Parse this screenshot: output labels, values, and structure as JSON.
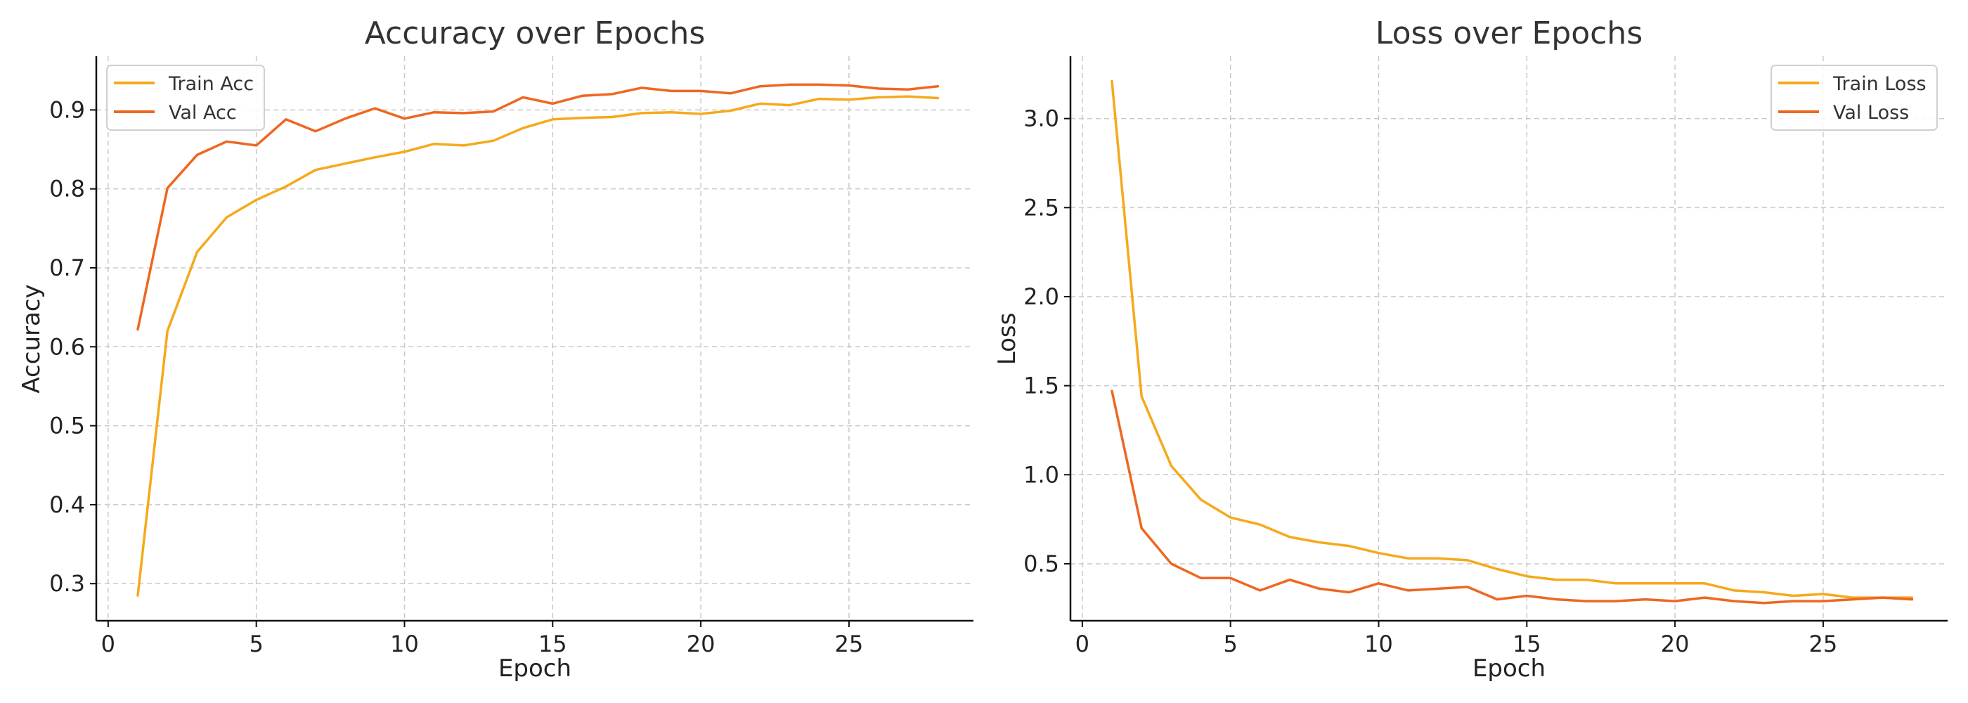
{
  "chart_data": [
    {
      "type": "line",
      "title": "Accuracy over Epochs",
      "xlabel": "Epoch",
      "ylabel": "Accuracy",
      "xlim": [
        -0.4,
        29.2
      ],
      "ylim": [
        0.253,
        0.968
      ],
      "xticks": [
        0,
        5,
        10,
        15,
        20,
        25
      ],
      "yticks": [
        0.3,
        0.4,
        0.5,
        0.6,
        0.7,
        0.8,
        0.9
      ],
      "grid": true,
      "legend_position": "upper-left",
      "x": [
        1,
        2,
        3,
        4,
        5,
        6,
        7,
        8,
        9,
        10,
        11,
        12,
        13,
        14,
        15,
        16,
        17,
        18,
        19,
        20,
        21,
        22,
        23,
        24,
        25,
        26,
        27,
        28
      ],
      "series": [
        {
          "name": "Train Acc",
          "color": "#f5a91c",
          "values": [
            0.285,
            0.62,
            0.72,
            0.764,
            0.786,
            0.803,
            0.824,
            0.832,
            0.84,
            0.847,
            0.857,
            0.855,
            0.861,
            0.877,
            0.888,
            0.89,
            0.891,
            0.896,
            0.897,
            0.895,
            0.899,
            0.908,
            0.906,
            0.914,
            0.913,
            0.916,
            0.917,
            0.915
          ]
        },
        {
          "name": "Val Acc",
          "color": "#ee6722",
          "values": [
            0.622,
            0.801,
            0.843,
            0.86,
            0.855,
            0.888,
            0.873,
            0.889,
            0.902,
            0.889,
            0.897,
            0.896,
            0.898,
            0.916,
            0.908,
            0.918,
            0.92,
            0.928,
            0.924,
            0.924,
            0.921,
            0.93,
            0.932,
            0.932,
            0.931,
            0.927,
            0.926,
            0.93
          ]
        }
      ]
    },
    {
      "type": "line",
      "title": "Loss over Epochs",
      "xlabel": "Epoch",
      "ylabel": "Loss",
      "xlim": [
        -0.4,
        29.2
      ],
      "ylim": [
        0.18,
        3.35
      ],
      "xticks": [
        0,
        5,
        10,
        15,
        20,
        25
      ],
      "yticks": [
        0.5,
        1.0,
        1.5,
        2.0,
        2.5,
        3.0
      ],
      "ytick_labels": [
        "0.5",
        "1.0",
        "1.5",
        "2.0",
        "2.5",
        "3.0"
      ],
      "grid": true,
      "legend_position": "upper-right",
      "x": [
        1,
        2,
        3,
        4,
        5,
        6,
        7,
        8,
        9,
        10,
        11,
        12,
        13,
        14,
        15,
        16,
        17,
        18,
        19,
        20,
        21,
        22,
        23,
        24,
        25,
        26,
        27,
        28
      ],
      "series": [
        {
          "name": "Train Loss",
          "color": "#f5a91c",
          "values": [
            3.21,
            1.44,
            1.05,
            0.86,
            0.76,
            0.72,
            0.65,
            0.62,
            0.6,
            0.56,
            0.53,
            0.53,
            0.52,
            0.47,
            0.43,
            0.41,
            0.41,
            0.39,
            0.39,
            0.39,
            0.39,
            0.35,
            0.34,
            0.32,
            0.33,
            0.31,
            0.31,
            0.31
          ]
        },
        {
          "name": "Val Loss",
          "color": "#ee6722",
          "values": [
            1.47,
            0.7,
            0.5,
            0.42,
            0.42,
            0.35,
            0.41,
            0.36,
            0.34,
            0.39,
            0.35,
            0.36,
            0.37,
            0.3,
            0.32,
            0.3,
            0.29,
            0.29,
            0.3,
            0.29,
            0.31,
            0.29,
            0.28,
            0.29,
            0.29,
            0.3,
            0.31,
            0.3
          ]
        }
      ]
    }
  ]
}
